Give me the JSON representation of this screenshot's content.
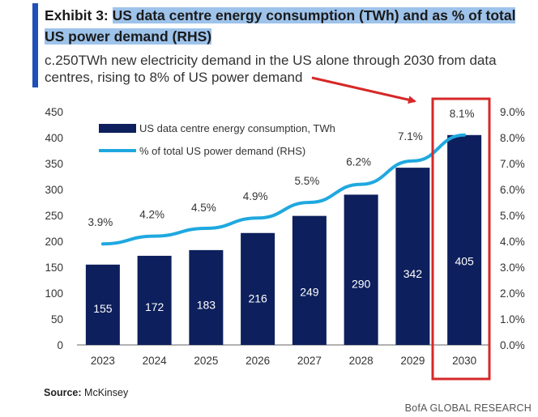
{
  "header": {
    "title_prefix": "Exhibit 3: ",
    "title_line1": "US data centre energy consumption (TWh) and as % of total",
    "title_line2": "US power demand (RHS)",
    "subtitle_line1": "c.250TWh new electricity demand in the US alone through 2030 from data",
    "subtitle_line2": "centres, rising to 8% of US power demand"
  },
  "footer": {
    "source_label": "Source:",
    "source_value": "McKinsey",
    "brand": "BofA GLOBAL RESEARCH"
  },
  "colors": {
    "bar": "#0d1f5c",
    "line": "#1fa8e0",
    "highlight_box": "#d62828",
    "arrow": "#d62828",
    "title_highlight": "#9ec3ea",
    "accent": "#1f4fb8"
  },
  "chart_data": {
    "type": "bar",
    "categories": [
      "2023",
      "2024",
      "2025",
      "2026",
      "2027",
      "2028",
      "2029",
      "2030"
    ],
    "series": [
      {
        "name": "US data centre energy consumption, TWh",
        "type": "bar",
        "axis": "left",
        "values": [
          155,
          172,
          183,
          216,
          249,
          290,
          342,
          405
        ]
      },
      {
        "name": "% of total US power demand (RHS)",
        "type": "line",
        "axis": "right",
        "values": [
          3.9,
          4.2,
          4.5,
          4.9,
          5.5,
          6.2,
          7.1,
          8.1
        ],
        "labels": [
          "3.9%",
          "4.2%",
          "4.5%",
          "4.9%",
          "5.5%",
          "6.2%",
          "7.1%",
          "8.1%"
        ]
      }
    ],
    "ylim_left": [
      0,
      450
    ],
    "yticks_left": [
      "0",
      "50",
      "100",
      "150",
      "200",
      "250",
      "300",
      "350",
      "400",
      "450"
    ],
    "ylim_right": [
      0,
      9.0
    ],
    "yticks_right": [
      "0.0%",
      "1.0%",
      "2.0%",
      "3.0%",
      "4.0%",
      "5.0%",
      "6.0%",
      "7.0%",
      "8.0%",
      "9.0%"
    ],
    "legend_position": "top-left",
    "grid": false,
    "highlight_category": "2030"
  }
}
